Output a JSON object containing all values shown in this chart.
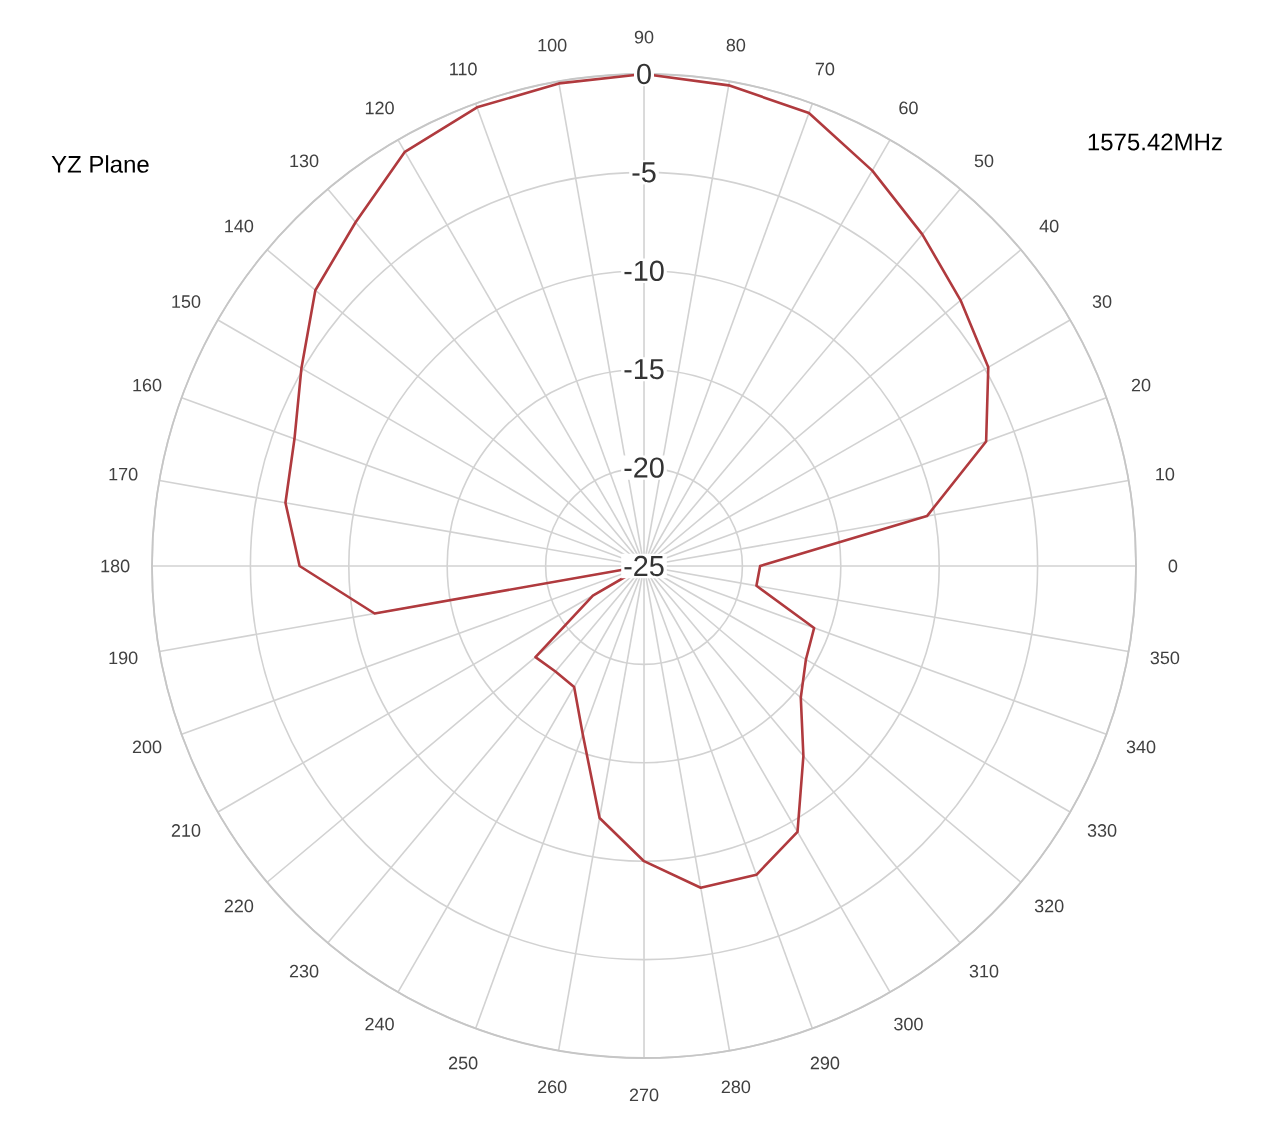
{
  "chart_data": {
    "type": "radar",
    "title": "YZ Plane",
    "subtitle": "1575.42MHz",
    "categories": [
      "90",
      "80",
      "70",
      "60",
      "50",
      "40",
      "30",
      "20",
      "10",
      "0",
      "350",
      "340",
      "330",
      "320",
      "310",
      "300",
      "290",
      "280",
      "270",
      "260",
      "250",
      "240",
      "230",
      "220",
      "210",
      "200",
      "190",
      "180",
      "170",
      "160",
      "150",
      "140",
      "130",
      "120",
      "110",
      "100"
    ],
    "series": [
      {
        "color": "#b03a3e",
        "values": [
          0,
          -0.2,
          -0.5,
          -1.8,
          -3,
          -4,
          -4.8,
          -6.5,
          -10.4,
          -19.1,
          -19.2,
          -15.8,
          -15.5,
          -14.6,
          -12.4,
          -9.4,
          -8.3,
          -8.4,
          -10,
          -12,
          -15.9,
          -17.9,
          -18,
          -17.8,
          -22,
          -25,
          -11.1,
          -7.5,
          -6.5,
          -6.1,
          -4.9,
          -3.2,
          -2.2,
          -0.7,
          -0.2,
          -0.1
        ]
      }
    ],
    "ylim": [
      -25,
      0
    ],
    "yticks": [
      -25,
      -20,
      -15,
      -10,
      -5,
      0
    ],
    "grid": true
  }
}
